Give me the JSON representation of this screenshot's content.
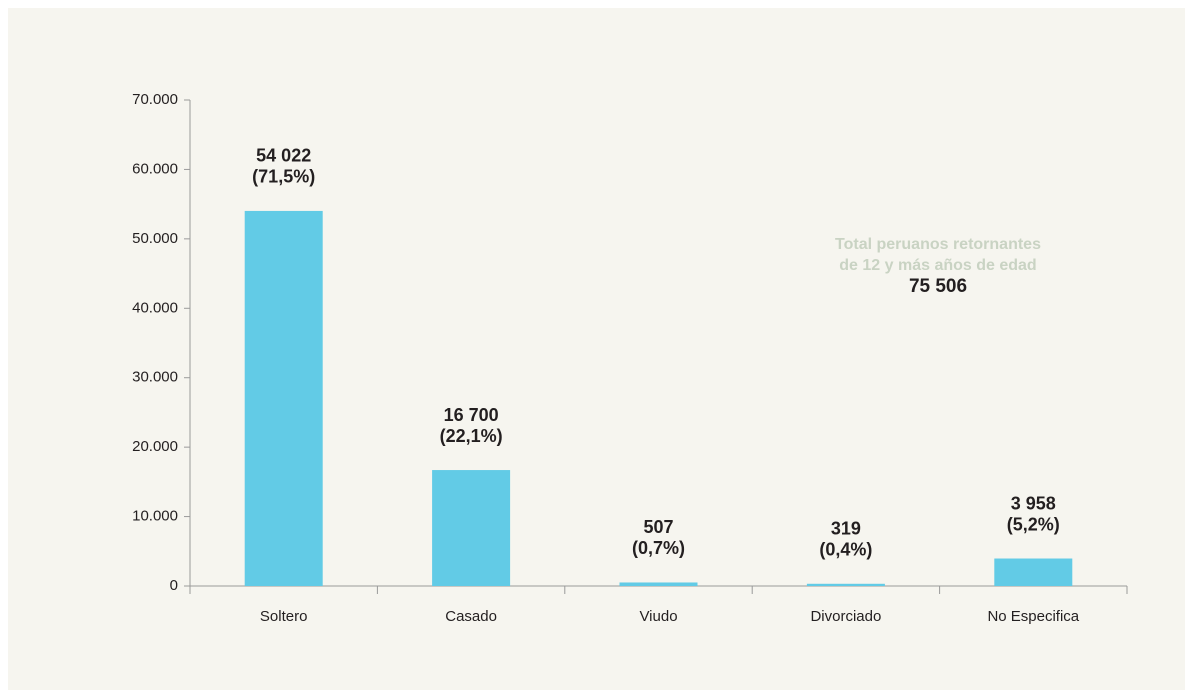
{
  "chart_data": {
    "type": "bar",
    "categories": [
      "Soltero",
      "Casado",
      "Viudo",
      "Divorciado",
      "No Especifica"
    ],
    "values": [
      54022,
      16700,
      507,
      319,
      3958
    ],
    "value_labels": [
      "54 022",
      "16 700",
      "507",
      "319",
      "3 958"
    ],
    "percent_labels": [
      "(71,5%)",
      "(22,1%)",
      "(0,7%)",
      "(0,4%)",
      "(5,2%)"
    ],
    "color": "#62cbe6",
    "ylim": [
      0,
      70000
    ],
    "yticks": [
      0,
      {
        "value": 10000,
        "label": "10.000"
      },
      {
        "value": 20000,
        "label": "20.000"
      },
      {
        "value": 30000,
        "label": "30.000"
      },
      {
        "value": 40000,
        "label": "40.000"
      },
      {
        "value": 50000,
        "label": "50.000"
      },
      {
        "value": 60000,
        "label": "60.000"
      },
      {
        "value": 70000,
        "label": "70.000"
      }
    ],
    "grid": false,
    "annotation": {
      "lines": [
        "Total peruanos retornantes",
        "de 12 y más años de edad"
      ],
      "total": "75 506"
    }
  }
}
